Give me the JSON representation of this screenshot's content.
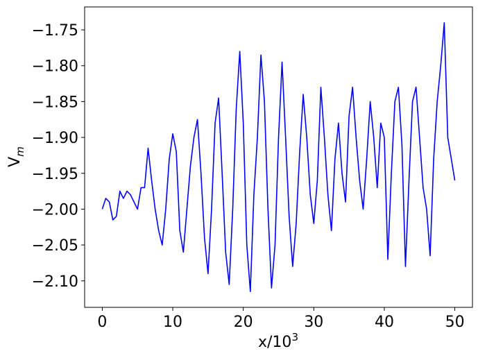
{
  "chart_data": {
    "type": "line",
    "xlabel": "x/10",
    "xlabel_sup": "3",
    "ylabel": "V",
    "ylabel_sub": "m",
    "x": [
      0,
      0.5,
      1,
      1.5,
      2,
      2.5,
      3,
      3.5,
      4,
      4.5,
      5,
      5.5,
      6,
      6.5,
      7,
      7.5,
      8,
      8.5,
      9,
      9.5,
      10,
      10.5,
      11,
      11.5,
      12,
      12.5,
      13,
      13.5,
      14,
      14.5,
      15,
      15.5,
      16,
      16.5,
      17,
      17.5,
      18,
      18.5,
      19,
      19.5,
      20,
      20.5,
      21,
      21.5,
      22,
      22.5,
      23,
      23.5,
      24,
      24.5,
      25,
      25.5,
      26,
      26.5,
      27,
      27.5,
      28,
      28.5,
      29,
      29.5,
      30,
      30.5,
      31,
      31.5,
      32,
      32.5,
      33,
      33.5,
      34,
      34.5,
      35,
      35.5,
      36,
      36.5,
      37,
      37.5,
      38,
      38.5,
      39,
      39.5,
      40,
      40.5,
      41,
      41.5,
      42,
      42.5,
      43,
      43.5,
      44,
      44.5,
      45,
      45.5,
      46,
      46.5,
      47,
      47.5,
      48,
      48.5,
      49,
      49.5,
      50
    ],
    "series": [
      {
        "color": "#0000ff",
        "values": [
          -2.0,
          -1.985,
          -1.99,
          -2.015,
          -2.01,
          -1.975,
          -1.985,
          -1.975,
          -1.98,
          -1.99,
          -2.0,
          -1.97,
          -1.97,
          -1.915,
          -1.96,
          -2.0,
          -2.03,
          -2.05,
          -2.0,
          -1.93,
          -1.895,
          -1.92,
          -2.03,
          -2.06,
          -2.0,
          -1.94,
          -1.9,
          -1.875,
          -1.95,
          -2.04,
          -2.09,
          -2.0,
          -1.88,
          -1.845,
          -1.95,
          -2.06,
          -2.105,
          -2.0,
          -1.86,
          -1.78,
          -1.88,
          -2.05,
          -2.115,
          -1.98,
          -1.9,
          -1.785,
          -1.85,
          -2.0,
          -2.11,
          -2.05,
          -1.9,
          -1.795,
          -1.9,
          -2.01,
          -2.08,
          -2.02,
          -1.92,
          -1.84,
          -1.9,
          -1.98,
          -2.02,
          -1.96,
          -1.83,
          -1.9,
          -1.98,
          -2.03,
          -1.93,
          -1.88,
          -1.95,
          -1.99,
          -1.87,
          -1.83,
          -1.9,
          -1.96,
          -2.0,
          -1.93,
          -1.85,
          -1.9,
          -1.97,
          -1.88,
          -1.9,
          -2.07,
          -1.95,
          -1.85,
          -1.83,
          -1.91,
          -2.08,
          -1.96,
          -1.85,
          -1.83,
          -1.9,
          -1.97,
          -2.0,
          -2.065,
          -1.93,
          -1.85,
          -1.8,
          -1.74,
          -1.9,
          -1.93,
          -1.96
        ]
      }
    ],
    "xlim": [
      -2.5,
      52.5
    ],
    "xticks": [
      0,
      10,
      20,
      30,
      40,
      50
    ],
    "ylim": [
      -2.137,
      -1.718
    ],
    "yticks": [
      {
        "value": -2.1,
        "label": "−2.10"
      },
      {
        "value": -2.05,
        "label": "−2.05"
      },
      {
        "value": -2.0,
        "label": "−2.00"
      },
      {
        "value": -1.95,
        "label": "−1.95"
      },
      {
        "value": -1.9,
        "label": "−1.90"
      },
      {
        "value": -1.85,
        "label": "−1.85"
      },
      {
        "value": -1.8,
        "label": "−1.80"
      },
      {
        "value": -1.75,
        "label": "−1.75"
      }
    ],
    "grid": false
  }
}
